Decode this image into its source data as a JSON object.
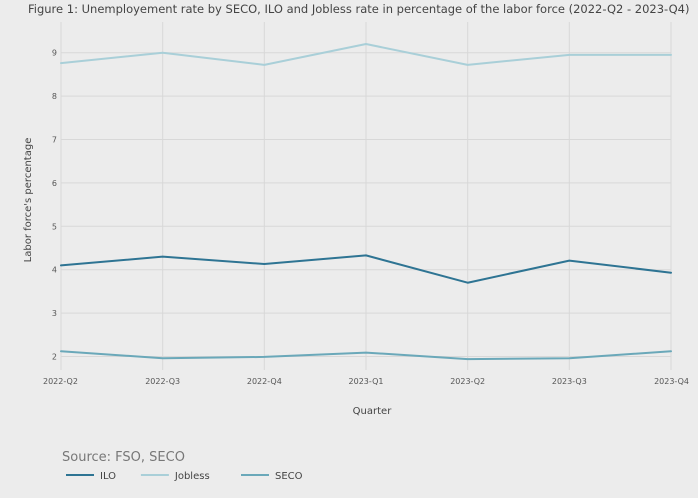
{
  "chart_data": {
    "type": "line",
    "title": "Figure 1: Unemployement rate by SECO, ILO and Jobless rate in percentage of the labor force (2022-Q2 - 2023-Q4)",
    "xlabel": "Quarter",
    "ylabel": "Labor force's percentage",
    "categories": [
      "2022-Q2",
      "2022-Q3",
      "2022-Q4",
      "2023-Q1",
      "2023-Q2",
      "2023-Q3",
      "2023-Q4"
    ],
    "yticks": [
      "2",
      "3",
      "4",
      "5",
      "6",
      "7",
      "8",
      "9"
    ],
    "ylim": [
      1.5,
      9.6
    ],
    "grid": true,
    "legend_position": "bottom-left",
    "source": "Source: FSO, SECO",
    "series": [
      {
        "name": "ILO",
        "color": "#2e7493",
        "values": [
          4.1,
          4.3,
          4.13,
          4.33,
          3.7,
          4.21,
          3.93
        ]
      },
      {
        "name": "Jobless",
        "color": "#a9cfd8",
        "values": [
          8.76,
          9.0,
          8.72,
          9.2,
          8.72,
          8.95,
          8.95
        ]
      },
      {
        "name": "SECO",
        "color": "#6aa8b9",
        "values": [
          2.12,
          1.96,
          1.99,
          2.09,
          1.94,
          1.96,
          2.12
        ]
      }
    ]
  }
}
